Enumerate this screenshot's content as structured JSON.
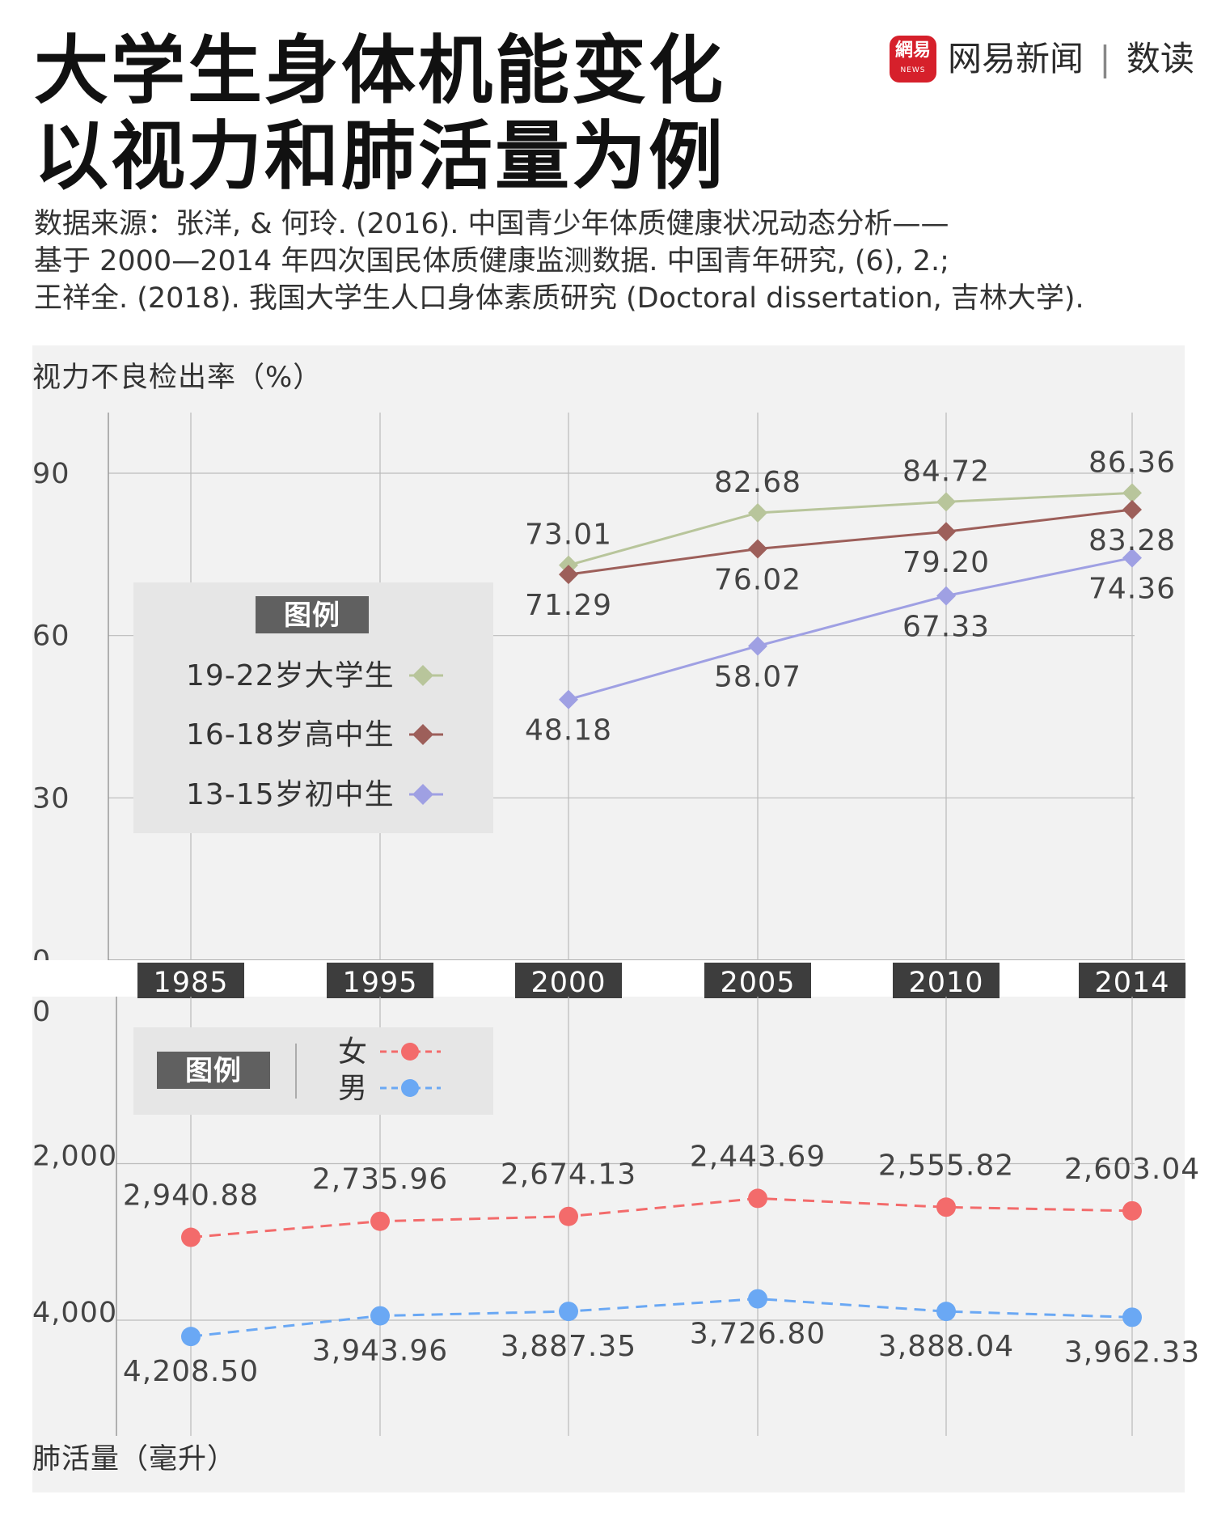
{
  "header": {
    "title_line1": "大学生身体机能变化",
    "title_line2": "以视力和肺活量为例",
    "source_lines": [
      "数据来源：张洋, & 何玲. (2016). 中国青少年体质健康状况动态分析——",
      "基于 2000—2014 年四次国民体质健康监测数据. 中国青年研究, (6), 2.;",
      "王祥全. (2018). 我国大学生人口身体素质研究 (Doctoral dissertation, 吉林大学)."
    ],
    "brand": {
      "logo_text": "網易",
      "logo_sub": "NEWS",
      "name": "网易新闻",
      "separator": "|",
      "product": "数读",
      "logo_color": "#d6202b"
    }
  },
  "colors": {
    "panel_bg": "#f2f2f2",
    "legend_bg": "#e6e6e6",
    "year_bar": "#3d3d3d",
    "grid": "#bbbbbb",
    "axis_text": "#444444"
  },
  "chart_data": [
    {
      "type": "line",
      "ylabel": "视力不良检出率（%）",
      "ylim": [
        0,
        90
      ],
      "yticks": [
        "0",
        "30",
        "60",
        "90"
      ],
      "ytick_values": [
        0,
        30,
        60,
        90
      ],
      "categories": [
        "1985",
        "1995",
        "2000",
        "2005",
        "2010",
        "2014"
      ],
      "legend_title": "图例",
      "series": [
        {
          "name": "19-22岁大学生",
          "color": "#b8c59b",
          "marker": "diamond",
          "values": [
            null,
            null,
            73.01,
            82.68,
            84.72,
            86.36
          ],
          "labels": [
            "",
            "",
            "73.01",
            "82.68",
            "84.72",
            "86.36"
          ]
        },
        {
          "name": "16-18岁高中生",
          "color": "#9d5f5a",
          "marker": "diamond",
          "values": [
            null,
            null,
            71.29,
            76.02,
            79.2,
            83.28
          ],
          "labels": [
            "",
            "",
            "71.29",
            "76.02",
            "79.20",
            "83.28"
          ]
        },
        {
          "name": "13-15岁初中生",
          "color": "#9fa0e3",
          "marker": "diamond",
          "values": [
            null,
            null,
            48.18,
            58.07,
            67.33,
            74.36
          ],
          "labels": [
            "",
            "",
            "48.18",
            "58.07",
            "67.33",
            "74.36"
          ]
        }
      ]
    },
    {
      "type": "line",
      "ylabel": "肺活量（毫升）",
      "ylim": [
        0,
        4000
      ],
      "y_inverted": true,
      "yticks": [
        "0",
        "2,000",
        "4,000"
      ],
      "ytick_values": [
        0,
        2000,
        4000
      ],
      "categories": [
        "1985",
        "1995",
        "2000",
        "2005",
        "2010",
        "2014"
      ],
      "legend_title": "图例",
      "series": [
        {
          "name": "女",
          "color": "#f36b6b",
          "marker": "circle",
          "dashed": true,
          "values": [
            2940.88,
            2735.96,
            2674.13,
            2443.69,
            2555.82,
            2603.04
          ],
          "labels": [
            "2,940.88",
            "2,735.96",
            "2,674.13",
            "2,443.69",
            "2,555.82",
            "2,603.04"
          ]
        },
        {
          "name": "男",
          "color": "#6aa8f4",
          "marker": "circle",
          "dashed": true,
          "values": [
            4208.5,
            3943.96,
            3887.35,
            3726.8,
            3888.04,
            3962.33
          ],
          "labels": [
            "4,208.50",
            "3,943.96",
            "3,887.35",
            "3,726.80",
            "3,888.04",
            "3,962.33"
          ]
        }
      ]
    }
  ]
}
